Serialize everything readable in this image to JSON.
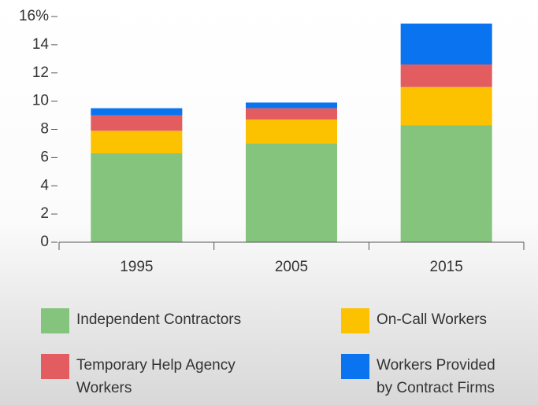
{
  "chart_data": {
    "type": "stacked_bar",
    "categories": [
      "1995",
      "2005",
      "2015"
    ],
    "series": [
      {
        "name": "Independent Contractors",
        "color": "#84c47c",
        "values": [
          6.3,
          7.0,
          8.3
        ]
      },
      {
        "name": "On-Call Workers",
        "color": "#fcc200",
        "values": [
          1.6,
          1.7,
          2.7
        ]
      },
      {
        "name": "Temporary Help Agency Workers",
        "color": "#e35c60",
        "values": [
          1.1,
          0.8,
          1.6
        ]
      },
      {
        "name": "Workers Provided by Contract Firms",
        "color": "#0a73f0",
        "values": [
          0.5,
          0.4,
          2.9
        ]
      }
    ],
    "ylim": [
      0,
      16
    ],
    "yticks": [
      0,
      2,
      4,
      6,
      8,
      10,
      12,
      14,
      {
        "value": 16,
        "label": "16%"
      }
    ]
  }
}
